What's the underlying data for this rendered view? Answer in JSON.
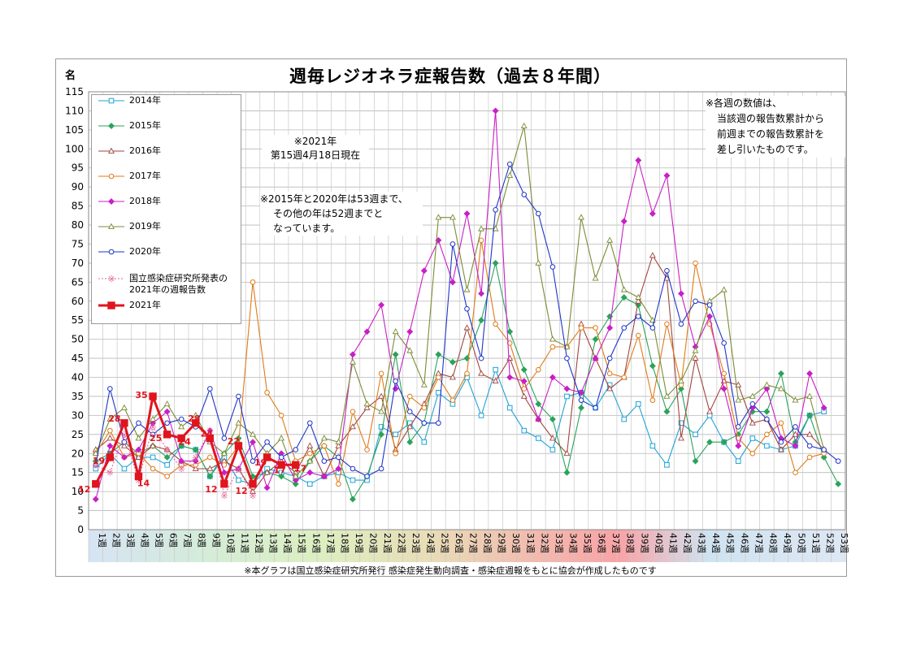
{
  "page": {
    "title": "週毎レジオネラ症報告数（過去８年間）",
    "y_unit": "名",
    "note_top": [
      "※各週の数値は、",
      "当該週の報告数累計から",
      "前週までの報告数累計を",
      "差し引いたものです。"
    ],
    "note_date": [
      "※2021年",
      "第15週4月18日現在"
    ],
    "note_weeks": [
      "※2015年と2020年は53週まで、",
      "その他の年は52週までと",
      "なっています。"
    ],
    "footer": "※本グラフは国立感染症研究所発行 感染症発生動向調査・感染症週報をもとに協会が作成したものです"
  },
  "chart_data": {
    "type": "line",
    "title": "週毎レジオネラ症報告数（過去８年間）",
    "ylabel": "名",
    "ylim": [
      0,
      115
    ],
    "yticks": [
      0,
      5,
      10,
      15,
      20,
      25,
      30,
      35,
      40,
      45,
      50,
      55,
      60,
      65,
      70,
      75,
      80,
      85,
      90,
      95,
      100,
      105,
      110,
      115
    ],
    "grid": true,
    "legend": "top-left",
    "categories": [
      "1週",
      "2週",
      "3週",
      "4週",
      "5週",
      "6週",
      "7週",
      "8週",
      "9週",
      "10週",
      "11週",
      "12週",
      "13週",
      "14週",
      "15週",
      "16週",
      "17週",
      "18週",
      "19週",
      "20週",
      "21週",
      "22週",
      "23週",
      "24週",
      "25週",
      "26週",
      "27週",
      "28週",
      "29週",
      "30週",
      "31週",
      "32週",
      "33週",
      "34週",
      "35週",
      "36週",
      "37週",
      "38週",
      "39週",
      "40週",
      "41週",
      "42週",
      "43週",
      "44週",
      "45週",
      "46週",
      "47週",
      "48週",
      "49週",
      "50週",
      "51週",
      "52週",
      "53週"
    ],
    "series": [
      {
        "name": "2014年",
        "color": "#1fa3d6",
        "marker": "square",
        "values": [
          16,
          20,
          16,
          19,
          19,
          17,
          22,
          21,
          14,
          19,
          13,
          12,
          16,
          15,
          14,
          12,
          14,
          15,
          13,
          13,
          27,
          25,
          28,
          23,
          36,
          33,
          40,
          30,
          42,
          32,
          26,
          24,
          21,
          35,
          36,
          32,
          38,
          29,
          33,
          22,
          17,
          28,
          25,
          30,
          23,
          18,
          24,
          22,
          21,
          22,
          30,
          31,
          null
        ]
      },
      {
        "name": "2015年",
        "color": "#2aa35a",
        "marker": "diamond",
        "values": [
          18,
          20,
          23,
          20,
          22,
          19,
          22,
          21,
          14,
          20,
          24,
          14,
          15,
          14,
          12,
          18,
          22,
          19,
          8,
          14,
          25,
          46,
          23,
          28,
          46,
          44,
          45,
          55,
          70,
          52,
          42,
          33,
          29,
          15,
          32,
          50,
          56,
          61,
          59,
          43,
          31,
          37,
          18,
          23,
          23,
          25,
          31,
          31,
          41,
          23,
          30,
          19,
          12
        ]
      },
      {
        "name": "2016年",
        "color": "#a0453d",
        "marker": "triangle",
        "values": [
          21,
          24,
          22,
          19,
          22,
          21,
          18,
          16,
          16,
          18,
          16,
          10,
          15,
          18,
          15,
          22,
          14,
          22,
          27,
          32,
          35,
          21,
          27,
          33,
          41,
          40,
          53,
          41,
          39,
          45,
          35,
          29,
          24,
          20,
          54,
          45,
          37,
          40,
          60,
          72,
          66,
          24,
          45,
          31,
          39,
          38,
          28,
          29,
          21,
          25,
          25,
          21,
          null
        ]
      },
      {
        "name": "2017年",
        "color": "#e07b17",
        "marker": "circle",
        "values": [
          20,
          26,
          19,
          20,
          16,
          14,
          17,
          17,
          19,
          17,
          22,
          65,
          36,
          30,
          18,
          20,
          22,
          12,
          31,
          21,
          41,
          20,
          35,
          32,
          40,
          34,
          41,
          76,
          54,
          49,
          37,
          42,
          48,
          48,
          53,
          53,
          41,
          40,
          51,
          34,
          54,
          38,
          70,
          54,
          41,
          24,
          20,
          25,
          28,
          15,
          19,
          20,
          null
        ]
      },
      {
        "name": "2018年",
        "color": "#c81fc6",
        "marker": "diamond",
        "values": [
          8,
          22,
          19,
          21,
          28,
          31,
          18,
          18,
          26,
          15,
          16,
          23,
          11,
          20,
          13,
          15,
          14,
          16,
          46,
          52,
          59,
          37,
          52,
          68,
          76,
          65,
          83,
          62,
          110,
          40,
          39,
          29,
          40,
          37,
          36,
          45,
          53,
          81,
          97,
          83,
          93,
          62,
          48,
          56,
          37,
          22,
          32,
          37,
          24,
          22,
          41,
          32,
          null
        ]
      },
      {
        "name": "2019年",
        "color": "#7a8c34",
        "marker": "triangle",
        "values": [
          20,
          29,
          32,
          24,
          29,
          33,
          27,
          30,
          23,
          20,
          28,
          25,
          20,
          24,
          14,
          18,
          24,
          23,
          44,
          33,
          31,
          52,
          47,
          38,
          82,
          82,
          63,
          79,
          79,
          93,
          106,
          70,
          50,
          48,
          82,
          66,
          76,
          63,
          61,
          55,
          35,
          39,
          47,
          60,
          63,
          34,
          35,
          38,
          37,
          34,
          35,
          21,
          null
        ]
      },
      {
        "name": "2020年",
        "color": "#1f35c8",
        "marker": "circle",
        "values": [
          17,
          37,
          23,
          28,
          25,
          28,
          29,
          27,
          37,
          24,
          35,
          18,
          23,
          19,
          21,
          28,
          18,
          19,
          16,
          14,
          16,
          39,
          31,
          28,
          28,
          75,
          58,
          45,
          84,
          96,
          88,
          83,
          69,
          45,
          34,
          32,
          45,
          53,
          56,
          53,
          68,
          54,
          60,
          59,
          49,
          27,
          33,
          29,
          23,
          27,
          22,
          21,
          18
        ]
      },
      {
        "name": "国立感染症研究所発表の2021年の週報告数",
        "color": "#e8669a",
        "marker": "asterisk",
        "values": [
          17,
          15,
          25,
          13,
          27,
          21,
          16,
          19,
          26,
          9,
          16,
          9,
          null,
          null,
          null,
          null,
          null,
          null,
          null,
          null,
          null,
          null,
          null,
          null,
          null,
          null,
          null,
          null,
          null,
          null,
          null,
          null,
          null,
          null,
          null,
          null,
          null,
          null,
          null,
          null,
          null,
          null,
          null,
          null,
          null,
          null,
          null,
          null,
          null,
          null,
          null,
          null,
          null
        ]
      },
      {
        "name": "2021年",
        "color": "#e0141e",
        "marker": "square",
        "values": [
          12,
          19,
          28,
          14,
          35,
          25,
          24,
          28,
          24,
          12,
          22,
          12,
          19,
          17,
          17,
          null,
          null,
          null,
          null,
          null,
          null,
          null,
          null,
          null,
          null,
          null,
          null,
          null,
          null,
          null,
          null,
          null,
          null,
          null,
          null,
          null,
          null,
          null,
          null,
          null,
          null,
          null,
          null,
          null,
          null,
          null,
          null,
          null,
          null,
          null,
          null,
          null,
          null
        ]
      }
    ],
    "data_labels_2021": [
      "12",
      "19",
      "28",
      "14",
      "35",
      "25",
      "24",
      "28",
      "24",
      "12",
      "22",
      "12",
      "19",
      "17",
      "17"
    ]
  }
}
